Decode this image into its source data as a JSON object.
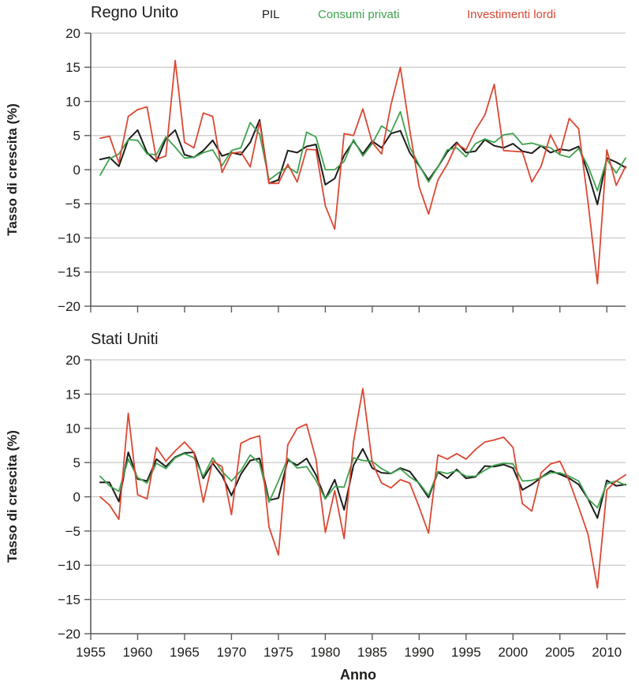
{
  "figure": {
    "panels": [
      {
        "title": "Regno Unito",
        "ylabel": "Tasso di crescita (%)"
      },
      {
        "title": "Stati Uniti",
        "ylabel": "Tasso di crescita (%)"
      }
    ],
    "xlabel": "Anno",
    "legend": [
      {
        "label": "PIL",
        "color": "#1d1d1b"
      },
      {
        "label": "Consumi privati",
        "color": "#3fa24f"
      },
      {
        "label": "Investimenti lordi",
        "color": "#dc4732"
      }
    ]
  },
  "style": {
    "background": "#ffffff",
    "grid_color": "#c9c9c9",
    "axis_color": "#5c5c5c",
    "text_color": "#1d1d1b"
  },
  "chart_data": [
    {
      "type": "line",
      "title": "Regno Unito",
      "xlabel": "Anno",
      "ylabel": "Tasso di crescita (%)",
      "ylim": [
        -20,
        20
      ],
      "yticks": [
        20,
        15,
        10,
        5,
        0,
        -5,
        -10,
        -15,
        -20
      ],
      "xticks": [
        1955,
        1960,
        1965,
        1970,
        1975,
        1980,
        1985,
        1990,
        1995,
        2000,
        2005,
        2010
      ],
      "grid": true,
      "legend_position": "top",
      "x": [
        1956,
        1957,
        1958,
        1959,
        1960,
        1961,
        1962,
        1963,
        1964,
        1965,
        1966,
        1967,
        1968,
        1969,
        1970,
        1971,
        1972,
        1973,
        1974,
        1975,
        1976,
        1977,
        1978,
        1979,
        1980,
        1981,
        1982,
        1983,
        1984,
        1985,
        1986,
        1987,
        1988,
        1989,
        1990,
        1991,
        1992,
        1993,
        1994,
        1995,
        1996,
        1997,
        1998,
        1999,
        2000,
        2001,
        2002,
        2003,
        2004,
        2005,
        2006,
        2007,
        2008,
        2009,
        2010,
        2011,
        2012
      ],
      "series": [
        {
          "name": "PIL",
          "color": "#1d1d1b",
          "values": [
            1.5,
            1.8,
            0.5,
            4.4,
            5.8,
            2.5,
            1.2,
            4.5,
            5.8,
            2.2,
            1.8,
            2.8,
            4.3,
            2.0,
            2.5,
            2.2,
            4.0,
            7.3,
            -2.0,
            -1.5,
            2.8,
            2.5,
            3.4,
            3.7,
            -2.2,
            -1.3,
            2.1,
            4.2,
            2.3,
            4.2,
            3.2,
            5.3,
            5.7,
            2.5,
            0.6,
            -1.5,
            0.4,
            2.6,
            4.0,
            2.5,
            2.7,
            4.4,
            3.5,
            3.2,
            3.8,
            2.7,
            2.4,
            3.5,
            2.5,
            3.0,
            2.8,
            3.4,
            -0.5,
            -5.1,
            1.7,
            1.1,
            0.3
          ]
        },
        {
          "name": "Consumi privati",
          "color": "#3fa24f",
          "values": [
            -0.8,
            1.6,
            2.3,
            4.4,
            4.3,
            2.3,
            2.2,
            4.8,
            3.3,
            1.7,
            1.8,
            2.5,
            2.9,
            0.6,
            2.8,
            3.2,
            6.9,
            5.2,
            -1.5,
            -0.5,
            0.4,
            -0.5,
            5.5,
            4.8,
            0.0,
            0.0,
            1.2,
            4.4,
            2.0,
            3.8,
            6.4,
            5.5,
            8.5,
            3.3,
            0.7,
            -1.8,
            0.4,
            2.9,
            3.2,
            1.9,
            3.8,
            4.5,
            4.0,
            5.1,
            5.3,
            3.7,
            3.9,
            3.5,
            3.2,
            2.2,
            1.8,
            3.1,
            0.5,
            -3.1,
            1.5,
            -0.5,
            1.7
          ]
        },
        {
          "name": "Investimenti lordi",
          "color": "#dc4732",
          "values": [
            4.6,
            4.9,
            1.0,
            7.8,
            8.8,
            9.2,
            1.5,
            2.0,
            16.0,
            4.0,
            3.2,
            8.3,
            7.8,
            -0.4,
            2.4,
            2.6,
            0.4,
            7.0,
            -2.0,
            -2.0,
            0.8,
            -1.8,
            3.0,
            2.9,
            -5.3,
            -8.7,
            5.3,
            5.0,
            8.9,
            4.0,
            2.3,
            9.5,
            15.0,
            5.8,
            -2.5,
            -6.5,
            -1.5,
            0.8,
            3.8,
            2.9,
            5.8,
            8.0,
            12.5,
            2.8,
            2.7,
            2.6,
            -1.8,
            0.5,
            5.1,
            2.4,
            7.5,
            6.0,
            -4.8,
            -16.7,
            2.9,
            -2.3,
            0.5
          ]
        }
      ]
    },
    {
      "type": "line",
      "title": "Stati Uniti",
      "xlabel": "Anno",
      "ylabel": "Tasso di crescita (%)",
      "ylim": [
        -20,
        20
      ],
      "yticks": [
        20,
        15,
        10,
        5,
        0,
        -5,
        -10,
        -15,
        -20
      ],
      "xticks": [
        1955,
        1960,
        1965,
        1970,
        1975,
        1980,
        1985,
        1990,
        1995,
        2000,
        2005,
        2010
      ],
      "grid": true,
      "legend_position": "top",
      "x": [
        1956,
        1957,
        1958,
        1959,
        1960,
        1961,
        1962,
        1963,
        1964,
        1965,
        1966,
        1967,
        1968,
        1969,
        1970,
        1971,
        1972,
        1973,
        1974,
        1975,
        1976,
        1977,
        1978,
        1979,
        1980,
        1981,
        1982,
        1983,
        1984,
        1985,
        1986,
        1987,
        1988,
        1989,
        1990,
        1991,
        1992,
        1993,
        1994,
        1995,
        1996,
        1997,
        1998,
        1999,
        2000,
        2001,
        2002,
        2003,
        2004,
        2005,
        2006,
        2007,
        2008,
        2009,
        2010,
        2011,
        2012
      ],
      "series": [
        {
          "name": "PIL",
          "color": "#1d1d1b",
          "values": [
            2.1,
            2.1,
            -0.7,
            6.5,
            2.6,
            2.3,
            5.5,
            4.4,
            5.8,
            6.4,
            6.5,
            2.7,
            4.9,
            3.1,
            0.2,
            3.3,
            5.3,
            5.6,
            -0.5,
            -0.2,
            5.4,
            4.6,
            5.6,
            3.2,
            -0.3,
            2.5,
            -1.9,
            4.6,
            7.0,
            4.2,
            3.5,
            3.4,
            4.2,
            3.7,
            1.9,
            -0.1,
            3.6,
            2.7,
            4.0,
            2.7,
            2.9,
            4.5,
            4.4,
            4.7,
            4.2,
            1.0,
            1.8,
            2.8,
            3.8,
            3.3,
            2.7,
            1.8,
            -0.3,
            -3.1,
            2.4,
            1.6,
            1.8
          ]
        },
        {
          "name": "Consumi privati",
          "color": "#3fa24f",
          "values": [
            3.0,
            1.6,
            0.8,
            5.5,
            2.8,
            2.0,
            4.9,
            4.1,
            5.7,
            6.3,
            5.7,
            3.0,
            5.7,
            3.7,
            2.3,
            3.8,
            6.1,
            4.9,
            -0.8,
            2.3,
            5.6,
            4.2,
            4.4,
            2.4,
            -0.3,
            1.5,
            1.4,
            5.7,
            5.3,
            5.2,
            4.1,
            3.4,
            4.1,
            2.9,
            2.0,
            0.2,
            3.7,
            3.4,
            3.8,
            3.0,
            3.0,
            3.9,
            4.6,
            4.9,
            4.8,
            2.3,
            2.4,
            2.8,
            3.5,
            3.5,
            3.0,
            2.3,
            -0.3,
            -1.6,
            1.9,
            2.3,
            1.7
          ]
        },
        {
          "name": "Investimenti lordi",
          "color": "#dc4732",
          "values": [
            0.0,
            -1.2,
            -3.3,
            12.2,
            0.3,
            -0.3,
            7.2,
            5.2,
            6.7,
            8.0,
            6.5,
            -0.8,
            5.2,
            4.4,
            -2.6,
            7.8,
            8.5,
            8.9,
            -4.4,
            -8.5,
            7.6,
            10.0,
            10.6,
            5.5,
            -5.2,
            0.9,
            -6.1,
            8.0,
            15.8,
            5.0,
            2.0,
            1.3,
            2.5,
            2.0,
            -1.5,
            -5.3,
            6.1,
            5.5,
            6.3,
            5.5,
            6.9,
            8.0,
            8.3,
            8.7,
            7.2,
            -1.0,
            -2.1,
            3.5,
            4.8,
            5.2,
            2.3,
            -1.5,
            -5.5,
            -13.3,
            1.0,
            2.3,
            3.2
          ]
        }
      ]
    }
  ]
}
